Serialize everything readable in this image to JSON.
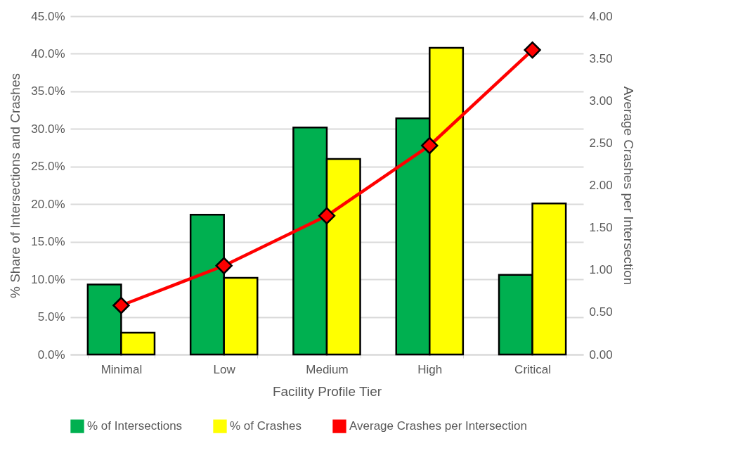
{
  "chart_data": {
    "type": "bar",
    "xlabel": "Facility Profile Tier",
    "ylabel": "% Share of Intersections and Crashes",
    "y2label": "Average Crashes per Intersection",
    "categories": [
      "Minimal",
      "Low",
      "Medium",
      "High",
      "Critical"
    ],
    "series": [
      {
        "name": "% of Intersections",
        "color": "#00b050",
        "values": [
          9.3,
          18.6,
          30.2,
          31.4,
          10.6
        ]
      },
      {
        "name": "% of Crashes",
        "color": "#ffff00",
        "values": [
          2.9,
          10.2,
          26.0,
          40.8,
          20.1
        ]
      },
      {
        "name": "Average Crashes per Intersection",
        "type": "line",
        "axis": "y2",
        "color": "#ff0000",
        "marker": "diamond",
        "values": [
          0.58,
          1.05,
          1.64,
          2.47,
          3.6
        ]
      }
    ],
    "ylim": [
      0,
      45
    ],
    "yticks": [
      {
        "value": 0,
        "label": "0.0%"
      },
      {
        "value": 5,
        "label": "5.0%"
      },
      {
        "value": 10,
        "label": "10.0%"
      },
      {
        "value": 15,
        "label": "15.0%"
      },
      {
        "value": 20,
        "label": "20.0%"
      },
      {
        "value": 25,
        "label": "25.0%"
      },
      {
        "value": 30,
        "label": "30.0%"
      },
      {
        "value": 35,
        "label": "35.0%"
      },
      {
        "value": 40,
        "label": "40.0%"
      },
      {
        "value": 45,
        "label": "45.0%"
      }
    ],
    "y2lim": [
      0,
      4
    ],
    "y2ticks": [
      {
        "value": 0,
        "label": "0.00"
      },
      {
        "value": 0.5,
        "label": "0.50"
      },
      {
        "value": 1,
        "label": "1.00"
      },
      {
        "value": 1.5,
        "label": "1.50"
      },
      {
        "value": 2,
        "label": "2.00"
      },
      {
        "value": 2.5,
        "label": "2.50"
      },
      {
        "value": 3,
        "label": "3.00"
      },
      {
        "value": 3.5,
        "label": "3.50"
      },
      {
        "value": 4,
        "label": "4.00"
      }
    ],
    "grid": "y",
    "legend": "bottom"
  }
}
